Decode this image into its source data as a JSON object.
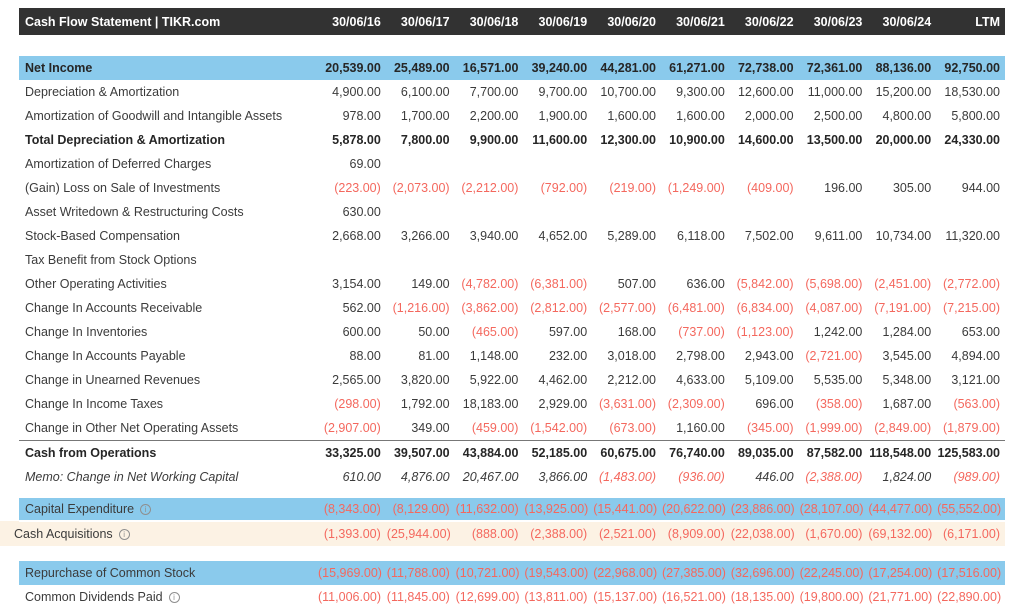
{
  "header": {
    "title": "Cash Flow Statement | TIKR.com",
    "columns": [
      "30/06/16",
      "30/06/17",
      "30/06/18",
      "30/06/19",
      "30/06/20",
      "30/06/21",
      "30/06/22",
      "30/06/23",
      "30/06/24",
      "LTM"
    ]
  },
  "colors": {
    "header_bg": "#323232",
    "highlight_blue": "#8acaec",
    "highlight_cream": "#fcf2e4",
    "negative_red": "#f4685e",
    "body_text": "#3b3b3b",
    "separator_line": "#777777"
  },
  "icons": {
    "info_glyph": "i"
  },
  "table": {
    "rows": [
      {
        "label": "Net Income",
        "bold": true,
        "bg": "blue",
        "values": [
          "20,539.00",
          "25,489.00",
          "16,571.00",
          "39,240.00",
          "44,281.00",
          "61,271.00",
          "72,738.00",
          "72,361.00",
          "88,136.00",
          "92,750.00"
        ]
      },
      {
        "label": "Depreciation & Amortization",
        "values": [
          "4,900.00",
          "6,100.00",
          "7,700.00",
          "9,700.00",
          "10,700.00",
          "9,300.00",
          "12,600.00",
          "11,000.00",
          "15,200.00",
          "18,530.00"
        ]
      },
      {
        "label": "Amortization of Goodwill and Intangible Assets",
        "values": [
          "978.00",
          "1,700.00",
          "2,200.00",
          "1,900.00",
          "1,600.00",
          "1,600.00",
          "2,000.00",
          "2,500.00",
          "4,800.00",
          "5,800.00"
        ]
      },
      {
        "label": "Total Depreciation & Amortization",
        "bold": true,
        "values": [
          "5,878.00",
          "7,800.00",
          "9,900.00",
          "11,600.00",
          "12,300.00",
          "10,900.00",
          "14,600.00",
          "13,500.00",
          "20,000.00",
          "24,330.00"
        ]
      },
      {
        "label": "Amortization of Deferred Charges",
        "values": [
          "69.00",
          "",
          "",
          "",
          "",
          "",
          "",
          "",
          "",
          ""
        ]
      },
      {
        "label": "(Gain) Loss on Sale of Investments",
        "values": [
          "(223.00)",
          "(2,073.00)",
          "(2,212.00)",
          "(792.00)",
          "(219.00)",
          "(1,249.00)",
          "(409.00)",
          "196.00",
          "305.00",
          "944.00"
        ]
      },
      {
        "label": "Asset Writedown & Restructuring Costs",
        "values": [
          "630.00",
          "",
          "",
          "",
          "",
          "",
          "",
          "",
          "",
          ""
        ]
      },
      {
        "label": "Stock-Based Compensation",
        "values": [
          "2,668.00",
          "3,266.00",
          "3,940.00",
          "4,652.00",
          "5,289.00",
          "6,118.00",
          "7,502.00",
          "9,611.00",
          "10,734.00",
          "11,320.00"
        ]
      },
      {
        "label": "Tax Benefit from Stock Options",
        "values": [
          "",
          "",
          "",
          "",
          "",
          "",
          "",
          "",
          "",
          ""
        ]
      },
      {
        "label": "Other Operating Activities",
        "values": [
          "3,154.00",
          "149.00",
          "(4,782.00)",
          "(6,381.00)",
          "507.00",
          "636.00",
          "(5,842.00)",
          "(5,698.00)",
          "(2,451.00)",
          "(2,772.00)"
        ]
      },
      {
        "label": "Change In Accounts Receivable",
        "values": [
          "562.00",
          "(1,216.00)",
          "(3,862.00)",
          "(2,812.00)",
          "(2,577.00)",
          "(6,481.00)",
          "(6,834.00)",
          "(4,087.00)",
          "(7,191.00)",
          "(7,215.00)"
        ]
      },
      {
        "label": "Change In Inventories",
        "values": [
          "600.00",
          "50.00",
          "(465.00)",
          "597.00",
          "168.00",
          "(737.00)",
          "(1,123.00)",
          "1,242.00",
          "1,284.00",
          "653.00"
        ]
      },
      {
        "label": "Change In Accounts Payable",
        "values": [
          "88.00",
          "81.00",
          "1,148.00",
          "232.00",
          "3,018.00",
          "2,798.00",
          "2,943.00",
          "(2,721.00)",
          "3,545.00",
          "4,894.00"
        ]
      },
      {
        "label": "Change in Unearned Revenues",
        "values": [
          "2,565.00",
          "3,820.00",
          "5,922.00",
          "4,462.00",
          "2,212.00",
          "4,633.00",
          "5,109.00",
          "5,535.00",
          "5,348.00",
          "3,121.00"
        ]
      },
      {
        "label": "Change In Income Taxes",
        "values": [
          "(298.00)",
          "1,792.00",
          "18,183.00",
          "2,929.00",
          "(3,631.00)",
          "(2,309.00)",
          "696.00",
          "(358.00)",
          "1,687.00",
          "(563.00)"
        ]
      },
      {
        "label": "Change in Other Net Operating Assets",
        "values": [
          "(2,907.00)",
          "349.00",
          "(459.00)",
          "(1,542.00)",
          "(673.00)",
          "1,160.00",
          "(345.00)",
          "(1,999.00)",
          "(2,849.00)",
          "(1,879.00)"
        ]
      },
      {
        "label": "Cash from Operations",
        "bold": true,
        "top_line": true,
        "values": [
          "33,325.00",
          "39,507.00",
          "43,884.00",
          "52,185.00",
          "60,675.00",
          "76,740.00",
          "89,035.00",
          "87,582.00",
          "118,548.00",
          "125,583.00"
        ]
      },
      {
        "label": "Memo: Change in Net Working Capital",
        "italic": true,
        "values": [
          "610.00",
          "4,876.00",
          "20,467.00",
          "3,866.00",
          "(1,483.00)",
          "(936.00)",
          "446.00",
          "(2,388.00)",
          "1,824.00",
          "(989.00)"
        ]
      },
      {
        "label": "Capital Expenditure",
        "bg": "blue",
        "info": true,
        "gap_before": "small",
        "sep_after": true,
        "values": [
          "(8,343.00)",
          "(8,129.00)",
          "(11,632.00)",
          "(13,925.00)",
          "(15,441.00)",
          "(20,622.00)",
          "(23,886.00)",
          "(28,107.00)",
          "(44,477.00)",
          "(55,552.00)"
        ]
      },
      {
        "label": "Cash Acquisitions",
        "bg": "cream",
        "info": true,
        "values": [
          "(1,393.00)",
          "(25,944.00)",
          "(888.00)",
          "(2,388.00)",
          "(2,521.00)",
          "(8,909.00)",
          "(22,038.00)",
          "(1,670.00)",
          "(69,132.00)",
          "(6,171.00)"
        ]
      },
      {
        "label": "Repurchase of Common Stock",
        "bg": "blue",
        "gap_before": "large",
        "values": [
          "(15,969.00)",
          "(11,788.00)",
          "(10,721.00)",
          "(19,543.00)",
          "(22,968.00)",
          "(27,385.00)",
          "(32,696.00)",
          "(22,245.00)",
          "(17,254.00)",
          "(17,516.00)"
        ]
      },
      {
        "label": "Common Dividends Paid",
        "info": true,
        "values": [
          "(11,006.00)",
          "(11,845.00)",
          "(12,699.00)",
          "(13,811.00)",
          "(15,137.00)",
          "(16,521.00)",
          "(18,135.00)",
          "(19,800.00)",
          "(21,771.00)",
          "(22,890.00)"
        ]
      }
    ]
  }
}
